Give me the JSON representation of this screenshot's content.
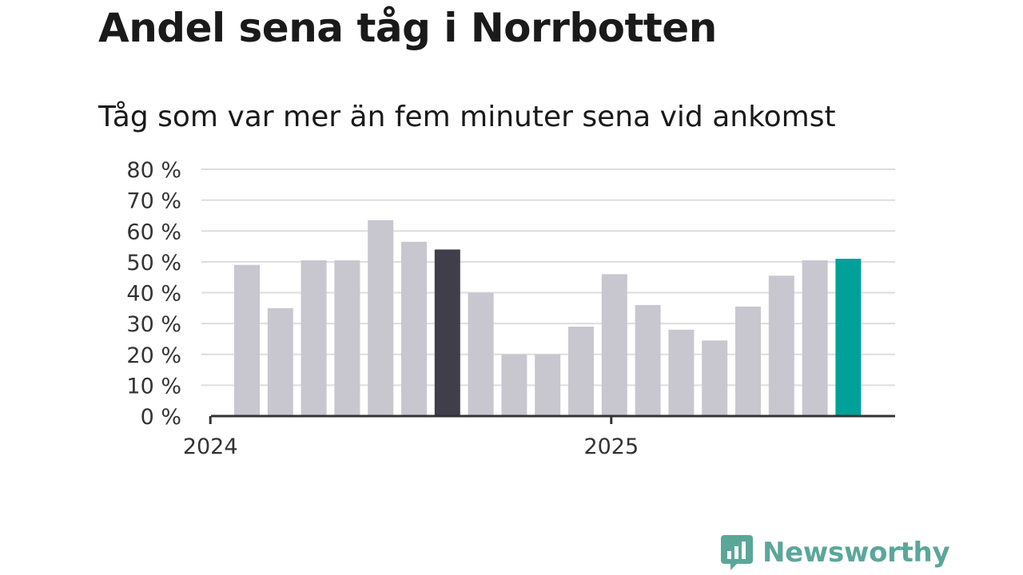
{
  "title": "Andel sena tåg i Norrbotten",
  "subtitle": "Tåg som var mer än fem minuter sena vid ankomst",
  "brand": {
    "name": "Newsworthy",
    "icon": "bar-chart-speech-bubble-icon",
    "color": "#5aa79a"
  },
  "colors": {
    "default_bar": "#c8c7cf",
    "highlight_bar": "#3f3e4a",
    "latest_bar": "#00a199",
    "grid": "#dddddd",
    "axis": "#333333"
  },
  "chart_data": {
    "type": "bar",
    "title": "Andel sena tåg i Norrbotten",
    "subtitle": "Tåg som var mer än fem minuter sena vid ankomst",
    "x": [
      "2024-02",
      "2024-03",
      "2024-04",
      "2024-05",
      "2024-06",
      "2024-07",
      "2024-08",
      "2024-09",
      "2024-10",
      "2024-11",
      "2024-12",
      "2025-01",
      "2025-02",
      "2025-03",
      "2025-04",
      "2025-05",
      "2025-06",
      "2025-07",
      "2025-08"
    ],
    "values": [
      49,
      35,
      50.5,
      50.5,
      63.5,
      56.5,
      54,
      40,
      20,
      20,
      29,
      46,
      36,
      28,
      24.5,
      35.5,
      45.5,
      50.5,
      51
    ],
    "highlight": {
      "2024-08": "highlight_bar",
      "2025-08": "latest_bar"
    },
    "x_ticks": [
      {
        "at": "2024-01",
        "label": "2024"
      },
      {
        "at": "2025-01",
        "label": "2025"
      }
    ],
    "y_ticks": [
      "0 %",
      "10 %",
      "20 %",
      "30 %",
      "40 %",
      "50 %",
      "60 %",
      "70 %",
      "80 %"
    ],
    "ylim": [
      0,
      80
    ],
    "grid": true,
    "legend": "none"
  }
}
